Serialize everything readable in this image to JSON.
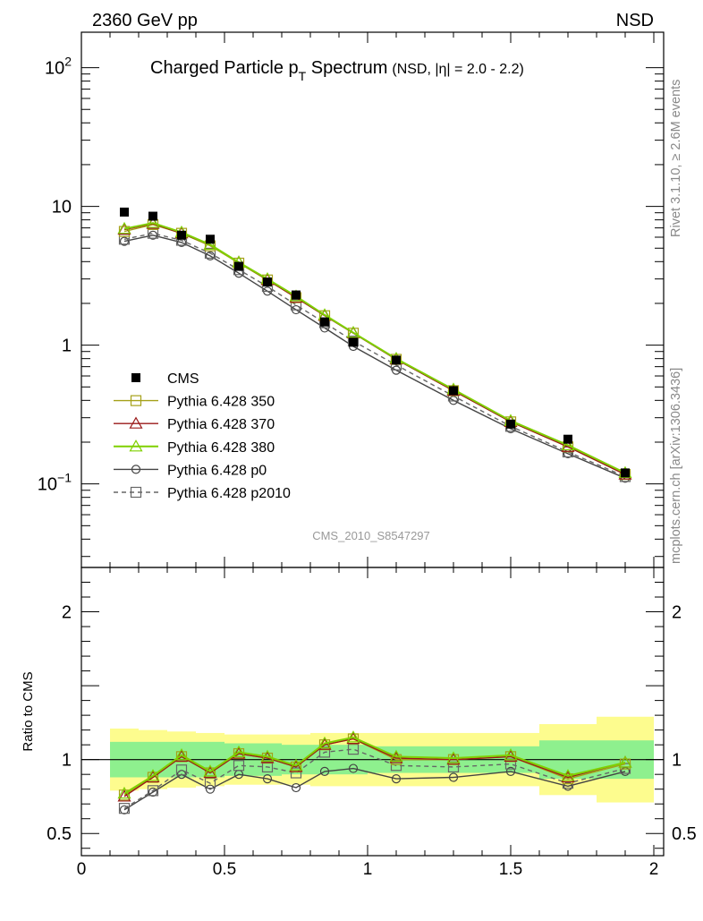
{
  "header": {
    "left": "2360 GeV pp",
    "right": "NSD"
  },
  "title": {
    "main": "Charged Particle p",
    "sub": "T",
    "main2": " Spectrum",
    "qualifier": "(NSD, |η| = 2.0 - 2.2)"
  },
  "side_labels": {
    "upper": "Rivet 3.1.10, ≥ 2.6M events",
    "lower": "mcplots.cern.ch [arXiv:1306.3436]"
  },
  "watermark": "CMS_2010_S8547297",
  "ratio_ylabel": "Ratio to CMS",
  "colors": {
    "cms": "#000000",
    "p350": "#a5a018",
    "p370": "#9a1a1a",
    "p380": "#7fd000",
    "p0": "#444444",
    "p2010": "#666666",
    "band_inner": "#8ef08e",
    "band_outer": "#fdfc8e"
  },
  "chart_data": [
    {
      "type": "scatter",
      "panel": "main",
      "yscale": "log",
      "xlim": [
        0,
        2
      ],
      "ylim": [
        0.025,
        180
      ],
      "yticks": [
        {
          "value": 0.1,
          "base": "10",
          "exp": "−1"
        },
        {
          "value": 1,
          "label": "1"
        },
        {
          "value": 10,
          "label": "10"
        },
        {
          "value": 100,
          "base": "10",
          "exp": "2"
        }
      ],
      "legend_position": "middle-left",
      "x": [
        0.15,
        0.25,
        0.35,
        0.45,
        0.55,
        0.65,
        0.75,
        0.85,
        0.95,
        1.1,
        1.3,
        1.5,
        1.7,
        1.9
      ],
      "series": [
        {
          "name": "CMS",
          "key": "cms",
          "marker": "filled-square",
          "values": [
            9.1,
            8.5,
            6.2,
            5.8,
            3.7,
            2.85,
            2.3,
            1.47,
            1.05,
            0.78,
            0.47,
            0.27,
            0.21,
            0.12
          ]
        },
        {
          "name": "Pythia 6.428 350",
          "key": "p350",
          "marker": "open-square",
          "line": "solid",
          "values": [
            6.6,
            7.4,
            6.4,
            5.2,
            3.9,
            2.95,
            2.2,
            1.63,
            1.22,
            0.79,
            0.47,
            0.28,
            0.185,
            0.117
          ]
        },
        {
          "name": "Pythia 6.428 370",
          "key": "p370",
          "marker": "open-triangle",
          "line": "solid",
          "values": [
            6.8,
            7.5,
            6.4,
            5.3,
            3.95,
            2.95,
            2.2,
            1.63,
            1.22,
            0.79,
            0.47,
            0.28,
            0.185,
            0.117
          ]
        },
        {
          "name": "Pythia 6.428 380",
          "key": "p380",
          "marker": "open-triangle",
          "line": "solid",
          "values": [
            6.9,
            7.6,
            6.5,
            5.3,
            3.95,
            3.0,
            2.25,
            1.65,
            1.23,
            0.8,
            0.48,
            0.285,
            0.19,
            0.12
          ]
        },
        {
          "name": "Pythia 6.428 p0",
          "key": "p0",
          "marker": "open-circle",
          "line": "solid",
          "values": [
            5.6,
            6.2,
            5.5,
            4.4,
            3.3,
            2.45,
            1.8,
            1.33,
            0.98,
            0.66,
            0.4,
            0.25,
            0.165,
            0.11
          ]
        },
        {
          "name": "Pythia 6.428 p2010",
          "key": "p2010",
          "marker": "open-square",
          "line": "dashed",
          "values": [
            5.8,
            6.4,
            5.7,
            4.6,
            3.5,
            2.65,
            1.95,
            1.45,
            1.07,
            0.72,
            0.43,
            0.26,
            0.17,
            0.113
          ]
        }
      ]
    },
    {
      "type": "line",
      "panel": "ratio",
      "ylabel": "Ratio to CMS",
      "xlim": [
        0,
        2
      ],
      "ylim": [
        0.35,
        2.3
      ],
      "xticks": [
        {
          "value": 0,
          "label": "0"
        },
        {
          "value": 0.5,
          "label": "0.5"
        },
        {
          "value": 1,
          "label": "1"
        },
        {
          "value": 1.5,
          "label": "1.5"
        },
        {
          "value": 2,
          "label": "2"
        }
      ],
      "yticks": [
        {
          "value": 0.5,
          "label": "0.5"
        },
        {
          "value": 1,
          "label": "1"
        },
        {
          "value": 2,
          "label": "2"
        }
      ],
      "x": [
        0.15,
        0.25,
        0.35,
        0.45,
        0.55,
        0.65,
        0.75,
        0.85,
        0.95,
        1.1,
        1.3,
        1.5,
        1.7,
        1.9
      ],
      "bands": {
        "edges": [
          0.1,
          0.2,
          0.3,
          0.4,
          0.5,
          0.6,
          0.7,
          0.8,
          0.9,
          1.0,
          1.2,
          1.4,
          1.6,
          1.8,
          2.0
        ],
        "inner": [
          [
            0.88,
            1.12
          ],
          [
            0.88,
            1.12
          ],
          [
            0.88,
            1.12
          ],
          [
            0.88,
            1.12
          ],
          [
            0.89,
            1.11
          ],
          [
            0.89,
            1.11
          ],
          [
            0.9,
            1.1
          ],
          [
            0.9,
            1.1
          ],
          [
            0.9,
            1.1
          ],
          [
            0.91,
            1.09
          ],
          [
            0.91,
            1.09
          ],
          [
            0.91,
            1.09
          ],
          [
            0.87,
            1.13
          ],
          [
            0.87,
            1.13
          ]
        ],
        "outer": [
          [
            0.79,
            1.21
          ],
          [
            0.8,
            1.2
          ],
          [
            0.81,
            1.19
          ],
          [
            0.82,
            1.18
          ],
          [
            0.83,
            1.17
          ],
          [
            0.83,
            1.17
          ],
          [
            0.83,
            1.17
          ],
          [
            0.82,
            1.18
          ],
          [
            0.82,
            1.18
          ],
          [
            0.82,
            1.18
          ],
          [
            0.82,
            1.18
          ],
          [
            0.82,
            1.18
          ],
          [
            0.76,
            1.24
          ],
          [
            0.71,
            1.29
          ]
        ]
      },
      "series": [
        {
          "name": "Pythia 6.428 350",
          "key": "p350",
          "marker": "open-square",
          "line": "solid",
          "values": [
            0.76,
            0.88,
            1.02,
            0.91,
            1.04,
            1.01,
            0.95,
            1.1,
            1.14,
            1.0,
            1.0,
            1.02,
            0.87,
            0.97
          ]
        },
        {
          "name": "Pythia 6.428 370",
          "key": "p370",
          "marker": "open-triangle",
          "line": "solid",
          "values": [
            0.75,
            0.88,
            1.02,
            0.91,
            1.04,
            1.01,
            0.95,
            1.1,
            1.14,
            1.01,
            1.0,
            1.02,
            0.88,
            0.98
          ]
        },
        {
          "name": "Pythia 6.428 380",
          "key": "p380",
          "marker": "open-triangle",
          "line": "solid",
          "values": [
            0.77,
            0.89,
            1.03,
            0.92,
            1.05,
            1.02,
            0.96,
            1.11,
            1.15,
            1.02,
            1.01,
            1.03,
            0.89,
            0.98
          ]
        },
        {
          "name": "Pythia 6.428 p0",
          "key": "p0",
          "marker": "open-circle",
          "line": "solid",
          "values": [
            0.66,
            0.78,
            0.9,
            0.8,
            0.9,
            0.87,
            0.81,
            0.92,
            0.94,
            0.87,
            0.88,
            0.92,
            0.82,
            0.92
          ]
        },
        {
          "name": "Pythia 6.428 p2010",
          "key": "p2010",
          "marker": "open-square",
          "line": "dashed",
          "values": [
            0.67,
            0.79,
            0.93,
            0.84,
            0.96,
            0.95,
            0.91,
            1.05,
            1.07,
            0.96,
            0.95,
            0.97,
            0.84,
            0.94
          ]
        }
      ]
    }
  ]
}
